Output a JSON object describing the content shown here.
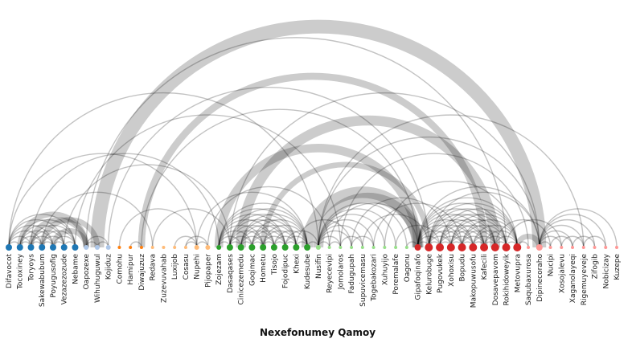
{
  "title": "Nexefonumey Qamoy",
  "chart_data": {
    "type": "arc-diagram",
    "groups": [
      {
        "id": 0,
        "color": "#1f77b4"
      },
      {
        "id": 1,
        "color": "#aec7e8"
      },
      {
        "id": 2,
        "color": "#ff7f0e"
      },
      {
        "id": 3,
        "color": "#ffbb78"
      },
      {
        "id": 4,
        "color": "#2ca02c"
      },
      {
        "id": 5,
        "color": "#98df8a"
      },
      {
        "id": 6,
        "color": "#d62728"
      },
      {
        "id": 7,
        "color": "#ff9896"
      }
    ],
    "nodes": [
      {
        "name": "Difavocot",
        "group": 0,
        "size": 4
      },
      {
        "name": "Tocoxiney",
        "group": 0,
        "size": 4
      },
      {
        "name": "Toryoys",
        "group": 0,
        "size": 4
      },
      {
        "name": "Sakewabubum",
        "group": 0,
        "size": 4
      },
      {
        "name": "Poyugusofig",
        "group": 0,
        "size": 4
      },
      {
        "name": "Vezazezozude",
        "group": 0,
        "size": 4
      },
      {
        "name": "Nebame",
        "group": 0,
        "size": 4
      },
      {
        "name": "Oapozexe",
        "group": 1,
        "size": 3
      },
      {
        "name": "Wihuhuguwul",
        "group": 1,
        "size": 3
      },
      {
        "name": "Kojiduz",
        "group": 1,
        "size": 3
      },
      {
        "name": "Comohu",
        "group": 2,
        "size": 2
      },
      {
        "name": "Hamipur",
        "group": 2,
        "size": 2
      },
      {
        "name": "Diwajuzuz",
        "group": 2,
        "size": 2
      },
      {
        "name": "Redava",
        "group": 3,
        "size": 2
      },
      {
        "name": "Zuzevuvahab",
        "group": 3,
        "size": 2
      },
      {
        "name": "Luxijob",
        "group": 3,
        "size": 2
      },
      {
        "name": "Cosasu",
        "group": 3,
        "size": 2
      },
      {
        "name": "Nupehi",
        "group": 3,
        "size": 3
      },
      {
        "name": "Pijopaper",
        "group": 3,
        "size": 3
      },
      {
        "name": "Zojezam",
        "group": 4,
        "size": 3
      },
      {
        "name": "Dasaqases",
        "group": 4,
        "size": 4
      },
      {
        "name": "Cinicezemedu",
        "group": 4,
        "size": 4
      },
      {
        "name": "Goqimac",
        "group": 4,
        "size": 4
      },
      {
        "name": "Hometu",
        "group": 4,
        "size": 4
      },
      {
        "name": "Tisojo",
        "group": 4,
        "size": 4
      },
      {
        "name": "Fojodipuc",
        "group": 4,
        "size": 4
      },
      {
        "name": "Khexi",
        "group": 4,
        "size": 4
      },
      {
        "name": "Kudesube",
        "group": 4,
        "size": 4
      },
      {
        "name": "Nusifin",
        "group": 5,
        "size": 3
      },
      {
        "name": "Reyecevipi",
        "group": 5,
        "size": 2
      },
      {
        "name": "Jomolaros",
        "group": 5,
        "size": 2
      },
      {
        "name": "Fadugupah",
        "group": 5,
        "size": 2
      },
      {
        "name": "Supuvicemasu",
        "group": 5,
        "size": 2
      },
      {
        "name": "Togebakozari",
        "group": 5,
        "size": 2
      },
      {
        "name": "Xuhuyijo",
        "group": 5,
        "size": 2
      },
      {
        "name": "Poremalafe",
        "group": 5,
        "size": 2
      },
      {
        "name": "Oagonu",
        "group": 5,
        "size": 2
      },
      {
        "name": "Gipafoqinafo",
        "group": 6,
        "size": 4
      },
      {
        "name": "Kelurobuge",
        "group": 6,
        "size": 5
      },
      {
        "name": "Pugovukek",
        "group": 6,
        "size": 5
      },
      {
        "name": "Xohoxisu",
        "group": 6,
        "size": 5
      },
      {
        "name": "Bopudu",
        "group": 6,
        "size": 5
      },
      {
        "name": "Makopuwusofu",
        "group": 6,
        "size": 5
      },
      {
        "name": "Kafecili",
        "group": 6,
        "size": 5
      },
      {
        "name": "Dosavepavom",
        "group": 6,
        "size": 5
      },
      {
        "name": "Rokihidoweyik",
        "group": 6,
        "size": 5
      },
      {
        "name": "Metovupra",
        "group": 6,
        "size": 5
      },
      {
        "name": "Saqubaxurosa",
        "group": 7,
        "size": 2
      },
      {
        "name": "Dipinecoraho",
        "group": 7,
        "size": 4
      },
      {
        "name": "Nucipi",
        "group": 7,
        "size": 2
      },
      {
        "name": "Xosojalevu",
        "group": 7,
        "size": 2
      },
      {
        "name": "Xaganolayeqi",
        "group": 7,
        "size": 2
      },
      {
        "name": "Rigemuyeveje",
        "group": 7,
        "size": 2
      },
      {
        "name": "Zifogib",
        "group": 7,
        "size": 2
      },
      {
        "name": "Nobicizay",
        "group": 7,
        "size": 2
      },
      {
        "name": "Kuzepe",
        "group": 7,
        "size": 2
      }
    ],
    "links": [
      {
        "source": 0,
        "target": 1,
        "value": 1
      },
      {
        "source": 0,
        "target": 2,
        "value": 1
      },
      {
        "source": 0,
        "target": 3,
        "value": 1
      },
      {
        "source": 0,
        "target": 4,
        "value": 1
      },
      {
        "source": 0,
        "target": 5,
        "value": 1
      },
      {
        "source": 0,
        "target": 6,
        "value": 1
      },
      {
        "source": 1,
        "target": 2,
        "value": 1
      },
      {
        "source": 1,
        "target": 3,
        "value": 1
      },
      {
        "source": 1,
        "target": 4,
        "value": 1
      },
      {
        "source": 1,
        "target": 5,
        "value": 1
      },
      {
        "source": 1,
        "target": 6,
        "value": 1
      },
      {
        "source": 2,
        "target": 3,
        "value": 1
      },
      {
        "source": 2,
        "target": 4,
        "value": 1
      },
      {
        "source": 2,
        "target": 5,
        "value": 1
      },
      {
        "source": 2,
        "target": 6,
        "value": 1
      },
      {
        "source": 3,
        "target": 4,
        "value": 1
      },
      {
        "source": 3,
        "target": 5,
        "value": 1
      },
      {
        "source": 3,
        "target": 6,
        "value": 1
      },
      {
        "source": 4,
        "target": 5,
        "value": 1
      },
      {
        "source": 4,
        "target": 6,
        "value": 1
      },
      {
        "source": 5,
        "target": 6,
        "value": 1
      },
      {
        "source": 1,
        "target": 7,
        "value": 2
      },
      {
        "source": 2,
        "target": 7,
        "value": 2
      },
      {
        "source": 3,
        "target": 8,
        "value": 2
      },
      {
        "source": 4,
        "target": 7,
        "value": 2
      },
      {
        "source": 0,
        "target": 17,
        "value": 1
      },
      {
        "source": 0,
        "target": 28,
        "value": 1
      },
      {
        "source": 2,
        "target": 19,
        "value": 1
      },
      {
        "source": 3,
        "target": 13,
        "value": 1
      },
      {
        "source": 5,
        "target": 20,
        "value": 1
      },
      {
        "source": 6,
        "target": 30,
        "value": 1
      },
      {
        "source": 7,
        "target": 8,
        "value": 1
      },
      {
        "source": 7,
        "target": 9,
        "value": 1
      },
      {
        "source": 8,
        "target": 9,
        "value": 1
      },
      {
        "source": 8,
        "target": 48,
        "value": 8
      },
      {
        "source": 9,
        "target": 38,
        "value": 1
      },
      {
        "source": 7,
        "target": 45,
        "value": 1
      },
      {
        "source": 11,
        "target": 12,
        "value": 1
      },
      {
        "source": 12,
        "target": 43,
        "value": 3
      },
      {
        "source": 12,
        "target": 37,
        "value": 1
      },
      {
        "source": 10,
        "target": 17,
        "value": 1
      },
      {
        "source": 15,
        "target": 17,
        "value": 1
      },
      {
        "source": 16,
        "target": 17,
        "value": 1
      },
      {
        "source": 17,
        "target": 18,
        "value": 1
      },
      {
        "source": 16,
        "target": 18,
        "value": 1
      },
      {
        "source": 17,
        "target": 27,
        "value": 1
      },
      {
        "source": 18,
        "target": 29,
        "value": 1
      },
      {
        "source": 13,
        "target": 20,
        "value": 1
      },
      {
        "source": 19,
        "target": 20,
        "value": 1
      },
      {
        "source": 19,
        "target": 21,
        "value": 1
      },
      {
        "source": 19,
        "target": 22,
        "value": 1
      },
      {
        "source": 19,
        "target": 23,
        "value": 1
      },
      {
        "source": 19,
        "target": 24,
        "value": 1
      },
      {
        "source": 19,
        "target": 25,
        "value": 1
      },
      {
        "source": 19,
        "target": 26,
        "value": 1
      },
      {
        "source": 19,
        "target": 27,
        "value": 1
      },
      {
        "source": 20,
        "target": 21,
        "value": 1
      },
      {
        "source": 20,
        "target": 22,
        "value": 1
      },
      {
        "source": 20,
        "target": 23,
        "value": 1
      },
      {
        "source": 20,
        "target": 24,
        "value": 1
      },
      {
        "source": 20,
        "target": 25,
        "value": 1
      },
      {
        "source": 20,
        "target": 26,
        "value": 1
      },
      {
        "source": 20,
        "target": 27,
        "value": 1
      },
      {
        "source": 21,
        "target": 22,
        "value": 1
      },
      {
        "source": 21,
        "target": 23,
        "value": 1
      },
      {
        "source": 21,
        "target": 24,
        "value": 1
      },
      {
        "source": 21,
        "target": 25,
        "value": 1
      },
      {
        "source": 21,
        "target": 26,
        "value": 1
      },
      {
        "source": 21,
        "target": 27,
        "value": 1
      },
      {
        "source": 22,
        "target": 23,
        "value": 1
      },
      {
        "source": 22,
        "target": 24,
        "value": 1
      },
      {
        "source": 22,
        "target": 25,
        "value": 1
      },
      {
        "source": 22,
        "target": 26,
        "value": 1
      },
      {
        "source": 22,
        "target": 27,
        "value": 1
      },
      {
        "source": 23,
        "target": 24,
        "value": 1
      },
      {
        "source": 23,
        "target": 25,
        "value": 1
      },
      {
        "source": 23,
        "target": 26,
        "value": 1
      },
      {
        "source": 23,
        "target": 27,
        "value": 1
      },
      {
        "source": 24,
        "target": 25,
        "value": 1
      },
      {
        "source": 24,
        "target": 26,
        "value": 1
      },
      {
        "source": 24,
        "target": 27,
        "value": 1
      },
      {
        "source": 25,
        "target": 26,
        "value": 1
      },
      {
        "source": 25,
        "target": 27,
        "value": 1
      },
      {
        "source": 26,
        "target": 27,
        "value": 1
      },
      {
        "source": 19,
        "target": 37,
        "value": 4
      },
      {
        "source": 27,
        "target": 37,
        "value": 6
      },
      {
        "source": 21,
        "target": 44,
        "value": 5
      },
      {
        "source": 20,
        "target": 48,
        "value": 1
      },
      {
        "source": 23,
        "target": 38,
        "value": 2
      },
      {
        "source": 26,
        "target": 31,
        "value": 1
      },
      {
        "source": 27,
        "target": 28,
        "value": 1
      },
      {
        "source": 25,
        "target": 28,
        "value": 1
      },
      {
        "source": 28,
        "target": 37,
        "value": 5
      },
      {
        "source": 28,
        "target": 29,
        "value": 1
      },
      {
        "source": 28,
        "target": 30,
        "value": 1
      },
      {
        "source": 28,
        "target": 31,
        "value": 1
      },
      {
        "source": 28,
        "target": 32,
        "value": 1
      },
      {
        "source": 28,
        "target": 33,
        "value": 1
      },
      {
        "source": 28,
        "target": 34,
        "value": 1
      },
      {
        "source": 28,
        "target": 35,
        "value": 1
      },
      {
        "source": 28,
        "target": 36,
        "value": 1
      },
      {
        "source": 29,
        "target": 30,
        "value": 1
      },
      {
        "source": 30,
        "target": 32,
        "value": 1
      },
      {
        "source": 31,
        "target": 33,
        "value": 1
      },
      {
        "source": 29,
        "target": 37,
        "value": 1
      },
      {
        "source": 31,
        "target": 40,
        "value": 1
      },
      {
        "source": 30,
        "target": 47,
        "value": 1
      },
      {
        "source": 32,
        "target": 38,
        "value": 1
      },
      {
        "source": 33,
        "target": 41,
        "value": 1
      },
      {
        "source": 34,
        "target": 46,
        "value": 1
      },
      {
        "source": 35,
        "target": 39,
        "value": 1
      },
      {
        "source": 36,
        "target": 37,
        "value": 1
      },
      {
        "source": 28,
        "target": 48,
        "value": 1
      },
      {
        "source": 28,
        "target": 52,
        "value": 1
      },
      {
        "source": 37,
        "target": 38,
        "value": 1
      },
      {
        "source": 37,
        "target": 39,
        "value": 1
      },
      {
        "source": 37,
        "target": 40,
        "value": 1
      },
      {
        "source": 37,
        "target": 41,
        "value": 1
      },
      {
        "source": 37,
        "target": 42,
        "value": 1
      },
      {
        "source": 37,
        "target": 43,
        "value": 1
      },
      {
        "source": 37,
        "target": 44,
        "value": 1
      },
      {
        "source": 37,
        "target": 45,
        "value": 1
      },
      {
        "source": 37,
        "target": 46,
        "value": 1
      },
      {
        "source": 38,
        "target": 39,
        "value": 1
      },
      {
        "source": 38,
        "target": 40,
        "value": 1
      },
      {
        "source": 38,
        "target": 41,
        "value": 1
      },
      {
        "source": 38,
        "target": 42,
        "value": 1
      },
      {
        "source": 38,
        "target": 43,
        "value": 1
      },
      {
        "source": 38,
        "target": 44,
        "value": 1
      },
      {
        "source": 38,
        "target": 45,
        "value": 1
      },
      {
        "source": 38,
        "target": 46,
        "value": 1
      },
      {
        "source": 39,
        "target": 40,
        "value": 1
      },
      {
        "source": 39,
        "target": 41,
        "value": 1
      },
      {
        "source": 39,
        "target": 42,
        "value": 1
      },
      {
        "source": 39,
        "target": 43,
        "value": 1
      },
      {
        "source": 39,
        "target": 44,
        "value": 1
      },
      {
        "source": 39,
        "target": 45,
        "value": 1
      },
      {
        "source": 39,
        "target": 46,
        "value": 1
      },
      {
        "source": 40,
        "target": 41,
        "value": 1
      },
      {
        "source": 40,
        "target": 42,
        "value": 1
      },
      {
        "source": 40,
        "target": 43,
        "value": 1
      },
      {
        "source": 40,
        "target": 44,
        "value": 1
      },
      {
        "source": 40,
        "target": 45,
        "value": 1
      },
      {
        "source": 40,
        "target": 46,
        "value": 1
      },
      {
        "source": 41,
        "target": 42,
        "value": 1
      },
      {
        "source": 41,
        "target": 43,
        "value": 1
      },
      {
        "source": 41,
        "target": 44,
        "value": 1
      },
      {
        "source": 41,
        "target": 45,
        "value": 1
      },
      {
        "source": 41,
        "target": 46,
        "value": 1
      },
      {
        "source": 42,
        "target": 43,
        "value": 1
      },
      {
        "source": 42,
        "target": 44,
        "value": 1
      },
      {
        "source": 42,
        "target": 45,
        "value": 1
      },
      {
        "source": 42,
        "target": 46,
        "value": 1
      },
      {
        "source": 43,
        "target": 44,
        "value": 1
      },
      {
        "source": 43,
        "target": 45,
        "value": 1
      },
      {
        "source": 43,
        "target": 46,
        "value": 1
      },
      {
        "source": 44,
        "target": 45,
        "value": 1
      },
      {
        "source": 44,
        "target": 46,
        "value": 1
      },
      {
        "source": 45,
        "target": 46,
        "value": 1
      },
      {
        "source": 46,
        "target": 47,
        "value": 1
      },
      {
        "source": 46,
        "target": 48,
        "value": 2
      },
      {
        "source": 38,
        "target": 48,
        "value": 1
      },
      {
        "source": 37,
        "target": 48,
        "value": 1
      },
      {
        "source": 44,
        "target": 49,
        "value": 1
      },
      {
        "source": 45,
        "target": 50,
        "value": 1
      },
      {
        "source": 48,
        "target": 49,
        "value": 1
      },
      {
        "source": 48,
        "target": 50,
        "value": 1
      },
      {
        "source": 48,
        "target": 51,
        "value": 1
      },
      {
        "source": 48,
        "target": 52,
        "value": 1
      },
      {
        "source": 48,
        "target": 53,
        "value": 1
      },
      {
        "source": 48,
        "target": 54,
        "value": 1
      },
      {
        "source": 48,
        "target": 55,
        "value": 1
      },
      {
        "source": 49,
        "target": 51,
        "value": 1
      },
      {
        "source": 50,
        "target": 52,
        "value": 1
      },
      {
        "source": 51,
        "target": 53,
        "value": 1
      },
      {
        "source": 52,
        "target": 54,
        "value": 1
      }
    ]
  }
}
